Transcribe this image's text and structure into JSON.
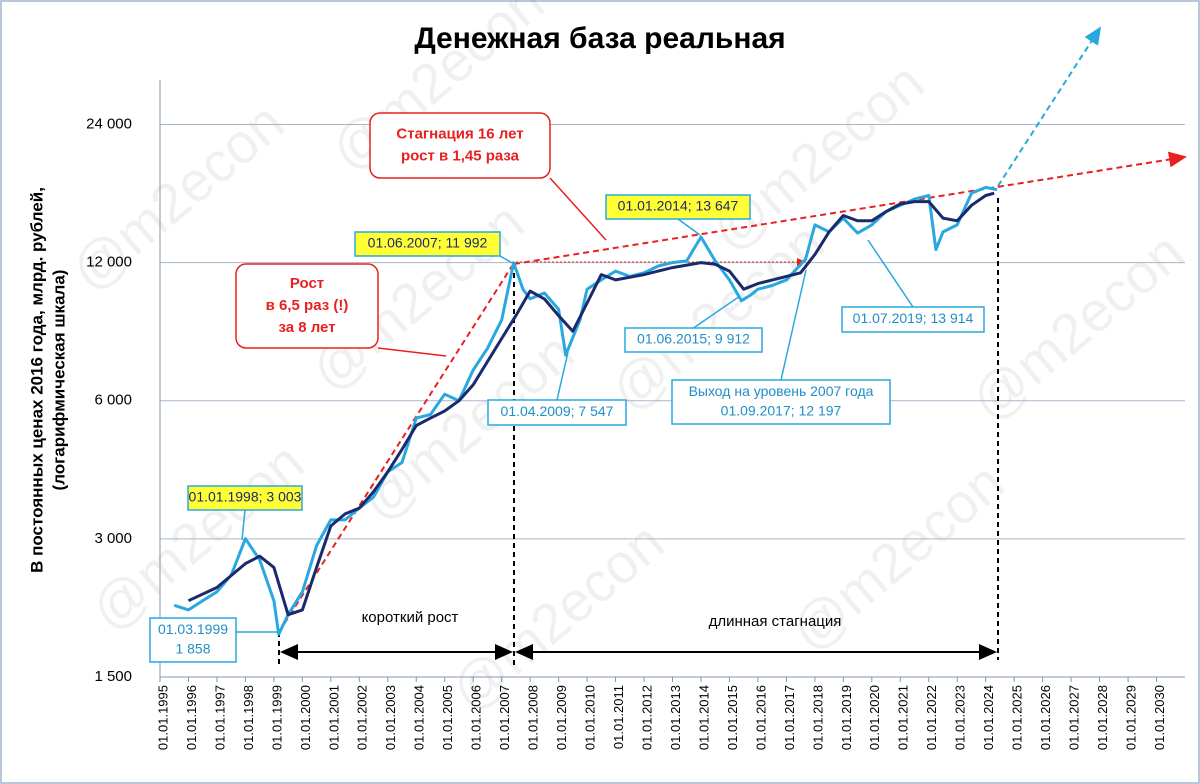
{
  "chart_data": {
    "type": "line",
    "title": "Денежная база реальная",
    "y_label": [
      "В постоянных ценах 2016 года, млрд. рублей,",
      "(логарифмическая шкала)"
    ],
    "watermark": "@m2econ",
    "log_scale": true,
    "grid": true,
    "xlim": [
      1995,
      2031
    ],
    "ylim": [
      1500,
      30000
    ],
    "yticks": [
      {
        "value": 1500,
        "label": "1 500"
      },
      {
        "value": 3000,
        "label": "3 000"
      },
      {
        "value": 6000,
        "label": "6 000"
      },
      {
        "value": 12000,
        "label": "12 000"
      },
      {
        "value": 24000,
        "label": "24 000"
      }
    ],
    "xticks": [
      {
        "value": 1995,
        "label": "01.01.1995"
      },
      {
        "value": 1996,
        "label": "01.01.1996"
      },
      {
        "value": 1997,
        "label": "01.01.1997"
      },
      {
        "value": 1998,
        "label": "01.01.1998"
      },
      {
        "value": 1999,
        "label": "01.01.1999"
      },
      {
        "value": 2000,
        "label": "01.01.2000"
      },
      {
        "value": 2001,
        "label": "01.01.2001"
      },
      {
        "value": 2002,
        "label": "01.01.2002"
      },
      {
        "value": 2003,
        "label": "01.01.2003"
      },
      {
        "value": 2004,
        "label": "01.01.2004"
      },
      {
        "value": 2005,
        "label": "01.01.2005"
      },
      {
        "value": 2006,
        "label": "01.01.2006"
      },
      {
        "value": 2007,
        "label": "01.01.2007"
      },
      {
        "value": 2008,
        "label": "01.01.2008"
      },
      {
        "value": 2009,
        "label": "01.01.2009"
      },
      {
        "value": 2010,
        "label": "01.01.2010"
      },
      {
        "value": 2011,
        "label": "01.01.2011"
      },
      {
        "value": 2012,
        "label": "01.01.2012"
      },
      {
        "value": 2013,
        "label": "01.01.2013"
      },
      {
        "value": 2014,
        "label": "01.01.2014"
      },
      {
        "value": 2015,
        "label": "01.01.2015"
      },
      {
        "value": 2016,
        "label": "01.01.2016"
      },
      {
        "value": 2017,
        "label": "01.01.2017"
      },
      {
        "value": 2018,
        "label": "01.01.2018"
      },
      {
        "value": 2019,
        "label": "01.01.2019"
      },
      {
        "value": 2020,
        "label": "01.01.2020"
      },
      {
        "value": 2021,
        "label": "01.01.2021"
      },
      {
        "value": 2022,
        "label": "01.01.2022"
      },
      {
        "value": 2023,
        "label": "01.01.2023"
      },
      {
        "value": 2024,
        "label": "01.01.2024"
      },
      {
        "value": 2025,
        "label": "01.01.2025"
      },
      {
        "value": 2026,
        "label": "01.01.2026"
      },
      {
        "value": 2027,
        "label": "01.01.2027"
      },
      {
        "value": 2028,
        "label": "01.01.2028"
      },
      {
        "value": 2029,
        "label": "01.01.2029"
      },
      {
        "value": 2030,
        "label": "01.01.2030"
      }
    ],
    "series": [
      {
        "color": "#29a8e0",
        "width": 3,
        "x": [
          1995.5,
          1996.0,
          1996.5,
          1997.0,
          1997.5,
          1998.0,
          1998.5,
          1999.0,
          1999.17,
          1999.5,
          2000.0,
          2000.5,
          2001.0,
          2001.5,
          2002.0,
          2002.5,
          2003.0,
          2003.5,
          2004.0,
          2004.5,
          2005.0,
          2005.5,
          2006.0,
          2006.5,
          2007.0,
          2007.42,
          2007.75,
          2008.0,
          2008.5,
          2009.0,
          2009.25,
          2009.75,
          2010.0,
          2010.5,
          2011.0,
          2011.5,
          2012.0,
          2012.5,
          2013.0,
          2013.5,
          2014.0,
          2014.5,
          2015.0,
          2015.42,
          2015.75,
          2016.0,
          2016.5,
          2017.0,
          2017.67,
          2018.0,
          2018.5,
          2019.0,
          2019.5,
          2020.0,
          2020.5,
          2021.0,
          2021.5,
          2022.0,
          2022.25,
          2022.5,
          2023.0,
          2023.5,
          2024.0,
          2024.4
        ],
        "values": [
          2150,
          2100,
          2200,
          2300,
          2500,
          3003,
          2700,
          2200,
          1858,
          2050,
          2300,
          2900,
          3300,
          3300,
          3500,
          3700,
          4200,
          4400,
          5500,
          5600,
          6200,
          6000,
          7000,
          7800,
          9000,
          11992,
          10500,
          10000,
          10300,
          9500,
          7547,
          9000,
          10500,
          11000,
          11500,
          11200,
          11400,
          11800,
          12000,
          12100,
          13647,
          12100,
          11000,
          9912,
          10200,
          10500,
          10700,
          11000,
          12197,
          14500,
          14000,
          15000,
          13914,
          14500,
          15500,
          16000,
          16500,
          16800,
          12800,
          14000,
          14500,
          17000,
          17500,
          17300
        ]
      },
      {
        "color": "#1a2a6c",
        "width": 3,
        "x": [
          1996.0,
          1997.0,
          1998.0,
          1998.5,
          1999.0,
          1999.5,
          2000.0,
          2000.5,
          2001.0,
          2001.5,
          2002.0,
          2002.5,
          2003.0,
          2003.5,
          2004.0,
          2004.5,
          2005.0,
          2005.5,
          2006.0,
          2006.5,
          2007.0,
          2007.5,
          2008.0,
          2008.5,
          2009.0,
          2009.5,
          2010.0,
          2010.5,
          2011.0,
          2012.0,
          2013.0,
          2014.0,
          2014.5,
          2015.0,
          2015.5,
          2016.0,
          2017.0,
          2017.5,
          2018.0,
          2018.5,
          2019.0,
          2019.5,
          2020.0,
          2020.5,
          2021.0,
          2021.5,
          2022.0,
          2022.5,
          2023.0,
          2023.5,
          2024.0,
          2024.3
        ],
        "values": [
          2200,
          2350,
          2650,
          2750,
          2600,
          2050,
          2100,
          2600,
          3200,
          3400,
          3500,
          3800,
          4200,
          4700,
          5300,
          5500,
          5700,
          6000,
          6500,
          7300,
          8200,
          9200,
          10400,
          10000,
          9200,
          8500,
          9800,
          11300,
          11000,
          11300,
          11700,
          12000,
          11900,
          11500,
          10500,
          10800,
          11200,
          11400,
          12500,
          14000,
          15200,
          14800,
          14800,
          15500,
          16100,
          16300,
          16300,
          15000,
          14800,
          16000,
          16800,
          17000
        ]
      }
    ],
    "annotations": [
      {
        "style": "yellow",
        "lines": [
          "01.01.1998; 3 003"
        ]
      },
      {
        "style": "blue",
        "lines": [
          "01.03.1999",
          "1 858"
        ]
      },
      {
        "style": "yellow",
        "lines": [
          "01.06.2007; 11 992"
        ]
      },
      {
        "style": "yellow",
        "lines": [
          "01.01.2014; 13 647"
        ]
      },
      {
        "style": "blue",
        "lines": [
          "01.04.2009; 7 547"
        ]
      },
      {
        "style": "blue",
        "lines": [
          "01.06.2015; 9 912"
        ]
      },
      {
        "style": "blue",
        "lines": [
          "Выход на уровень 2007 года",
          "01.09.2017; 12 197"
        ]
      },
      {
        "style": "blue",
        "lines": [
          "01.07.2019; 13 914"
        ]
      },
      {
        "style": "red",
        "lines": [
          "Рост",
          "в 6,5 раз (!)",
          "за 8 лет"
        ]
      },
      {
        "style": "red",
        "lines": [
          "Стагнация 16 лет",
          "рост в 1,45 раза"
        ]
      }
    ],
    "periods": [
      "короткий рост",
      "длинная стагнация"
    ]
  }
}
